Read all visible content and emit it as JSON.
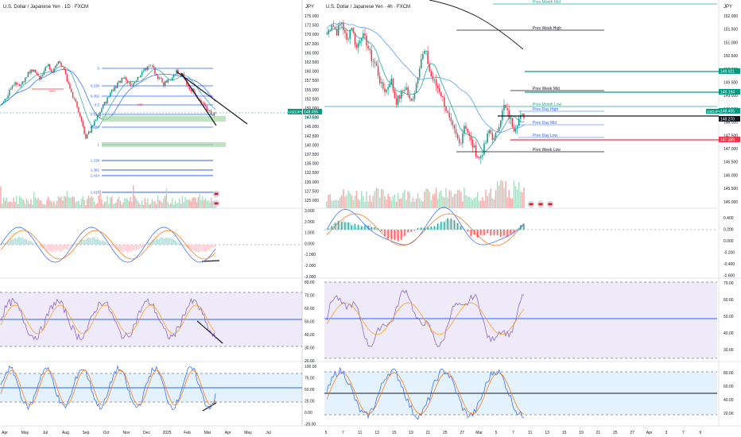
{
  "left": {
    "title": "U.S. Dollar / Japanese Yen · 1D · FXCM",
    "fib_levels": [
      "0",
      "0.236",
      "0.382",
      "0.5",
      "0.618",
      "0.786",
      "1",
      "1.236",
      "1.382",
      "1.414",
      "1.618"
    ],
    "tag_labels": [
      "MPR",
      "HOB"
    ],
    "x_labels": [
      "Apr",
      "May",
      "Jul",
      "Aug",
      "Sep",
      "Oct",
      "Nov",
      "Dec",
      "2025",
      "Feb",
      "Mar",
      "Apr",
      "May",
      "Jul"
    ]
  },
  "right": {
    "title": "U.S. Dollar / Japanese Yen · 4h · FXCM",
    "currency": "JPY",
    "price_labels": [
      "175.000",
      "172.500",
      "170.000",
      "167.500",
      "165.000",
      "162.500",
      "160.000",
      "157.500",
      "155.000",
      "152.500",
      "150.000",
      "147.500",
      "145.000",
      "142.500",
      "140.000",
      "137.500",
      "135.000",
      "132.500",
      "130.000",
      "127.500",
      "125.000"
    ],
    "macd_labels": [
      "3.000",
      "2.000",
      "1.000",
      "0.000",
      "-1.000",
      "-2.000",
      "-3.000"
    ],
    "rsi_labels": [
      "80.00",
      "70.00",
      "60.00",
      "50.00",
      "40.00",
      "30.00",
      "20.00"
    ],
    "stoch_labels": [
      "100.00",
      "75.00",
      "50.00",
      "25.00",
      "0.00",
      "-25.00"
    ],
    "level_labels": {
      "prev_month_mid": "Prev Month Mid",
      "prev_week_high": "Prev Week High",
      "prev_week_mid": "Prev Week Mid",
      "prev_month_low": "Prev Month Low",
      "prev_day_high": "Prev Day High",
      "prev_day_mid": "Prev Day Mid",
      "prev_day_low": "Prev Day Low",
      "prev_week_low": "Prev Week Low"
    },
    "symbol_tag": "USDJPY",
    "symbol_price": "148.455",
    "symbol_sub": "78:12:06",
    "x_labels": [
      "5",
      "7",
      "11",
      "13",
      "15",
      "19",
      "21",
      "25",
      "27",
      "Mar",
      "5",
      "7",
      "11",
      "13",
      "15",
      "19",
      "21",
      "25",
      "27",
      "Apr",
      "3",
      "7",
      "9"
    ]
  },
  "axis": {
    "currency": "JPY",
    "price_labels": [
      "152.000",
      "151.500",
      "151.000",
      "150.500",
      "150.000",
      "149.500",
      "149.000",
      "148.500",
      "148.000",
      "147.500",
      "147.000",
      "146.500",
      "146.000",
      "145.500",
      "145.000"
    ],
    "tags": [
      {
        "text": "149.921",
        "color": "#089981"
      },
      {
        "text": "149.194",
        "color": "#089981"
      },
      {
        "text": "148.455",
        "color": "#089981"
      },
      {
        "text": "148.270",
        "color": "#131722"
      },
      {
        "text": "147.389",
        "color": "#f23645"
      }
    ],
    "macd_labels": [
      "0.400",
      "0.200",
      "0.000",
      "-0.200",
      "-0.400",
      "-0.600"
    ],
    "rsi_labels": [
      "70.00",
      "60.00",
      "50.00",
      "40.00",
      "30.00"
    ],
    "stoch_labels": [
      "80.00",
      "60.00",
      "40.00",
      "20.00"
    ]
  },
  "chart_data": {
    "type": "line",
    "title": "U.S. Dollar / Japanese Yen · 4h · FXCM",
    "ylabel": "JPY",
    "ylim": [
      125,
      175
    ],
    "series": [
      {
        "name": "USDJPY",
        "x": [
          0,
          1,
          2,
          3,
          4,
          5,
          6,
          7,
          8,
          9,
          10,
          11,
          12,
          13,
          14,
          15,
          16,
          17,
          18,
          19,
          20,
          21,
          22,
          23,
          24,
          25,
          26,
          27,
          28,
          29,
          30,
          31,
          32,
          33,
          34,
          35,
          36,
          37,
          38,
          39,
          40
        ],
        "values": [
          170.5,
          173.5,
          171.0,
          174.0,
          168.5,
          173.0,
          166.5,
          170.5,
          168.5,
          164.0,
          162.0,
          156.5,
          155.0,
          158.5,
          152.0,
          154.0,
          156.5,
          151.5,
          156.0,
          163.5,
          166.0,
          159.5,
          157.0,
          155.0,
          151.0,
          146.5,
          143.5,
          140.5,
          146.5,
          142.0,
          139.0,
          136.5,
          140.0,
          144.5,
          141.5,
          146.5,
          151.0,
          148.0,
          145.0,
          147.5,
          148.5
        ]
      }
    ],
    "levels": {
      "prev_month_mid": 176.5,
      "prev_week_high": 169.5,
      "prev_week_mid": 152.3,
      "prev_month_low": 149.9,
      "prev_day_high": 148.6,
      "prev_day_mid": 145.6,
      "prev_day_low": 142.4,
      "prev_week_low": 139.0
    }
  }
}
